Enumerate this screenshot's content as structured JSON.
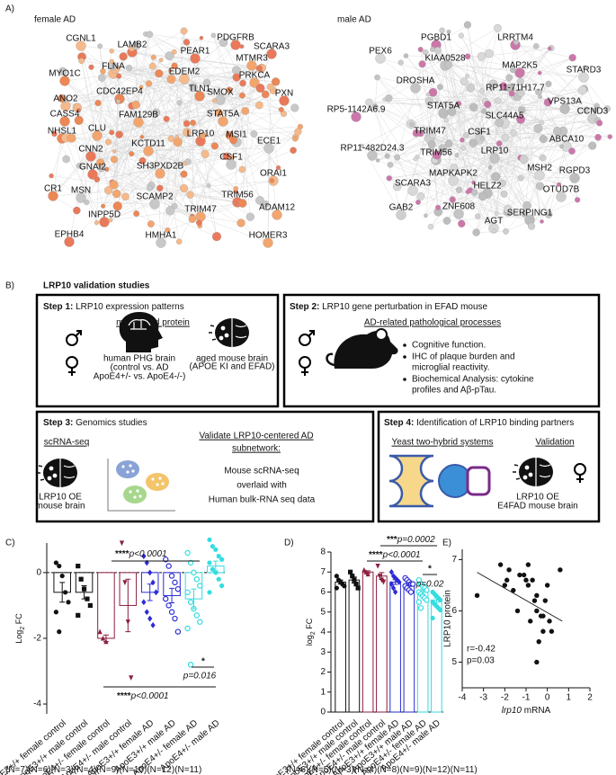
{
  "figure": {
    "panel_a": {
      "label": "A)",
      "networks": [
        {
          "title": "female AD",
          "nodes": [
            {
              "label": "CGNL1",
              "color": "#111111"
            },
            {
              "label": "LAMB2",
              "color": "#111111"
            },
            {
              "label": "PEAR1",
              "color": "#111111"
            },
            {
              "label": "PDGFRB",
              "color": "#111111"
            },
            {
              "label": "SCARA3",
              "color": "#3a4ab5"
            },
            {
              "label": "MTMR3",
              "color": "#3a4ab5"
            },
            {
              "label": "MYO1C",
              "color": "#111111"
            },
            {
              "label": "FLNA",
              "color": "#111111"
            },
            {
              "label": "EDEM2",
              "color": "#3a4ab5"
            },
            {
              "label": "PRKCA",
              "color": "#3a4ab5"
            },
            {
              "label": "ANO2",
              "color": "#3a4ab5"
            },
            {
              "label": "CDC42EP4",
              "color": "#111111"
            },
            {
              "label": "TLN1",
              "color": "#3a4ab5"
            },
            {
              "label": "SMOX",
              "color": "#111111"
            },
            {
              "label": "PXN",
              "color": "#111111"
            },
            {
              "label": "CASS4",
              "color": "#3a4ab5"
            },
            {
              "label": "FAM129B",
              "color": "#111111"
            },
            {
              "label": "STAT5A",
              "color": "#111111"
            },
            {
              "label": "NHSL1",
              "color": "#3a4ab5"
            },
            {
              "label": "CLU",
              "color": "#3a4ab5"
            },
            {
              "label": "LRP10",
              "color": "#111111"
            },
            {
              "label": "MSI1",
              "color": "#111111"
            },
            {
              "label": "ECE1",
              "color": "#111111"
            },
            {
              "label": "CNN2",
              "color": "#3a4ab5"
            },
            {
              "label": "KCTD11",
              "color": "#111111"
            },
            {
              "label": "CSF1",
              "color": "#3a4ab5"
            },
            {
              "label": "GNAI2",
              "color": "#111111"
            },
            {
              "label": "SH3PXD2B",
              "color": "#111111"
            },
            {
              "label": "ORAI1",
              "color": "#111111"
            },
            {
              "label": "CR1",
              "color": "#3a4ab5"
            },
            {
              "label": "MSN",
              "color": "#111111"
            },
            {
              "label": "SCAMP2",
              "color": "#111111"
            },
            {
              "label": "TRIM56",
              "color": "#3a4ab5"
            },
            {
              "label": "ADAM12",
              "color": "#3a4ab5"
            },
            {
              "label": "TRIM47",
              "color": "#3a4ab5"
            },
            {
              "label": "INPP5D",
              "color": "#3a4ab5"
            },
            {
              "label": "EPHB4",
              "color": "#111111"
            },
            {
              "label": "HMHA1",
              "color": "#111111"
            },
            {
              "label": "HOMER3",
              "color": "#111111"
            }
          ]
        },
        {
          "title": "male AD",
          "nodes": [
            {
              "label": "PGBD1",
              "color": "#3a4ab5"
            },
            {
              "label": "LRRTM4",
              "color": "#111111"
            },
            {
              "label": "PEX6",
              "color": "#3a4ab5"
            },
            {
              "label": "KIAA0528",
              "color": "#111111"
            },
            {
              "label": "MAP2K5",
              "color": "#3a4ab5"
            },
            {
              "label": "STARD3",
              "color": "#111111"
            },
            {
              "label": "DROSHA",
              "color": "#111111"
            },
            {
              "label": "RP11-71H17.7",
              "color": "#111111"
            },
            {
              "label": "VPS13A",
              "color": "#111111"
            },
            {
              "label": "CCND3",
              "color": "#111111"
            },
            {
              "label": "RP5-1142A6.9",
              "color": "#111111"
            },
            {
              "label": "STAT5A",
              "color": "#111111"
            },
            {
              "label": "SLC44A5",
              "color": "#111111"
            },
            {
              "label": "TRIM47",
              "color": "#3a4ab5"
            },
            {
              "label": "CSF1",
              "color": "#3a4ab5"
            },
            {
              "label": "ABCA10",
              "color": "#111111"
            },
            {
              "label": "RP11-482D24.3",
              "color": "#111111"
            },
            {
              "label": "LRP10",
              "color": "#111111"
            },
            {
              "label": "TRIM56",
              "color": "#3a4ab5"
            },
            {
              "label": "MAPKAPK2",
              "color": "#111111"
            },
            {
              "label": "MSH2",
              "color": "#3a4ab5"
            },
            {
              "label": "RGPD3",
              "color": "#111111"
            },
            {
              "label": "SCARA3",
              "color": "#3a4ab5"
            },
            {
              "label": "HELZ2",
              "color": "#111111"
            },
            {
              "label": "OTUD7B",
              "color": "#3a4ab5"
            },
            {
              "label": "GAB2",
              "color": "#3a4ab5"
            },
            {
              "label": "ZNF608",
              "color": "#3a4ab5"
            },
            {
              "label": "SERPING1",
              "color": "#3a4ab5"
            },
            {
              "label": "AGT",
              "color": "#3a4ab5"
            }
          ]
        }
      ]
    },
    "panel_b": {
      "label": "B)",
      "title": "LRP10 validation studies",
      "steps": [
        {
          "step": "Step 1:",
          "title": " LRP10 expression patterns",
          "subtitle": "mRNA and protein",
          "captions": [
            [
              "human PHG brain",
              "(control vs. AD",
              "ApoE4+/- vs. ApoE4-/-)"
            ],
            [
              "aged mouse brain",
              "(APOE KI and EFAD)"
            ]
          ]
        },
        {
          "step": "Step 2:",
          "title": " LRP10 gene perturbation in EFAD mouse",
          "subtitle": "AD-related pathological processes",
          "bullets": [
            [
              "Cognitive function."
            ],
            [
              "IHC of plaque burden and",
              "microglial reactivity."
            ],
            [
              "Biochemical Analysis: cytokine",
              "profiles and Aβ-pTau."
            ]
          ]
        },
        {
          "step": "Step 3:",
          "title": " Genomics studies",
          "subtitle": "scRNA-seq",
          "subtitle2": [
            "Validate LRP10-centered AD",
            "subnetwork:"
          ],
          "body": [
            "Mouse scRNA-seq",
            "overlaid with",
            "Human bulk-RNA seq data"
          ],
          "captions": [
            [
              "LRP10 OE",
              "mouse brain"
            ]
          ]
        },
        {
          "step": "Step 4:",
          "title": " Identification of LRP10 binding partners",
          "subtitle": "Yeast two-hybrid systems",
          "subtitle2": [
            "Validation"
          ],
          "captions": [
            [
              "LRP10 OE",
              "E4FAD mouse brain"
            ]
          ]
        }
      ]
    },
    "panel_labels": [
      "C)",
      "D)",
      "E)"
    ]
  },
  "chart_data": [
    {
      "type": "bar",
      "categories": [
        "ApoE3+/+ female control",
        "ApoE3+/+ male control",
        "ApoE4+/- female control",
        "ApoE4+/- male control",
        "ApoE3+/+ female AD",
        "ApoE3+/+ male AD",
        "ApoE4+/- female AD",
        "ApoE4+/- male AD"
      ],
      "values": [
        -0.6,
        -0.6,
        -2.0,
        -1.0,
        -0.6,
        -0.7,
        -0.8,
        0.2
      ],
      "errors": [
        0.3,
        0.2,
        0.1,
        0.8,
        0.25,
        0.22,
        0.3,
        0.15
      ],
      "points": [
        [
          0.3,
          0.2,
          -0.1,
          -0.6,
          -0.9,
          -1.2,
          -1.8
        ],
        [
          0.2,
          -0.2,
          -0.5,
          -0.8,
          -1.0,
          -1.3
        ],
        [
          -1.8,
          -2.0,
          -2.1
        ],
        [
          0.9,
          -0.3,
          -1.5,
          -3.2
        ],
        [
          0.5,
          0.3,
          0.0,
          -0.3,
          -0.6,
          -0.9,
          -1.2,
          -1.4,
          -1.6
        ],
        [
          0.4,
          0.2,
          -0.1,
          -0.3,
          -0.5,
          -0.8,
          -1.0,
          -1.2,
          -1.4,
          -1.8
        ],
        [
          0.6,
          0.3,
          0.0,
          -0.2,
          -0.4,
          -0.6,
          -0.9,
          -1.1,
          -1.3,
          -1.5,
          -1.7,
          -2.8
        ],
        [
          1.0,
          0.8,
          0.7,
          0.5,
          0.4,
          0.3,
          0.1,
          0.0,
          -0.2,
          -0.4,
          -0.6
        ]
      ],
      "colors": [
        "#111111",
        "#111111",
        "#8b1e3f",
        "#8b1e3f",
        "#2b2bd6",
        "#2b2bd6",
        "#33dde0",
        "#33dde0"
      ],
      "markers": [
        "circle",
        "square",
        "triangle",
        "triangle-down",
        "diamond",
        "circle-open",
        "circle-open",
        "circle"
      ],
      "n_labels": [
        "(N=7)",
        "(N=6)",
        "(N=3)",
        "(N=4)",
        "(N=9)",
        "(N=10)",
        "(N=12)",
        "(N=11)"
      ],
      "ylabel": [
        "Log",
        "2",
        " FC"
      ],
      "ylim": [
        -4.3,
        0.9
      ],
      "yticks": [
        0,
        -2,
        -4
      ],
      "zero_line": "dashed",
      "annotations": [
        {
          "stars": "****",
          "p": "p<0.0001"
        },
        {
          "stars": "*",
          "p": "p=0.016"
        },
        {
          "stars": "****",
          "p": "p<0.0001"
        }
      ]
    },
    {
      "type": "bar",
      "categories": [
        "ApoE3+/+ female control",
        "ApoE3+/+ male control",
        "ApoE4+/- female control",
        "ApoE4+/- male control",
        "ApoE3+/+ female AD",
        "ApoE3+/+ male AD",
        "ApoE4+/- female AD",
        "ApoE4+/- male AD"
      ],
      "values": [
        6.5,
        6.6,
        7.0,
        6.8,
        6.5,
        6.4,
        6.0,
        5.6
      ],
      "errors": [
        0.1,
        0.15,
        0.06,
        0.17,
        0.12,
        0.08,
        0.12,
        0.11
      ],
      "points": [
        [
          6.8,
          6.6,
          6.5,
          6.4,
          6.3,
          6.2
        ],
        [
          7.0,
          6.8,
          6.6,
          6.4,
          6.2
        ],
        [
          7.1,
          7.0,
          6.9
        ],
        [
          7.3,
          6.8,
          6.6,
          6.5
        ],
        [
          7.0,
          6.8,
          6.7,
          6.6,
          6.5,
          6.4,
          6.2,
          6.0
        ],
        [
          6.7,
          6.6,
          6.5,
          6.4,
          6.4,
          6.3,
          6.2,
          6.1,
          6.0
        ],
        [
          6.6,
          6.4,
          6.3,
          6.2,
          6.1,
          6.0,
          5.9,
          5.8,
          5.7,
          5.6,
          5.5,
          5.2
        ],
        [
          6.0,
          5.9,
          5.8,
          5.7,
          5.6,
          5.5,
          5.4,
          5.3,
          5.2,
          5.1,
          4.7
        ]
      ],
      "colors": [
        "#111111",
        "#111111",
        "#8b1e3f",
        "#8b1e3f",
        "#2b2bd6",
        "#2b2bd6",
        "#33dde0",
        "#33dde0"
      ],
      "markers": [
        "circle",
        "square",
        "triangle",
        "triangle-down",
        "diamond",
        "circle-open",
        "circle-open",
        "circle"
      ],
      "n_labels": [
        "(N=6)",
        "(N=5)",
        "(N=3)",
        "(N=4)",
        "(N=8)",
        "(N=9)",
        "(N=12)",
        "(N=11)"
      ],
      "ylabel": [
        "log",
        "2",
        " FC"
      ],
      "ylim": [
        0,
        8
      ],
      "yticks": [
        0,
        1,
        2,
        3,
        4,
        5,
        6,
        7,
        8
      ],
      "annotations": [
        {
          "stars": "***",
          "p": "p=0.0002"
        },
        {
          "stars": "****",
          "p": "p<0.0001"
        },
        {
          "stars": "*",
          "p": "p=0.02"
        }
      ]
    },
    {
      "type": "scatter",
      "x": [
        -3.3,
        -2.2,
        -2.0,
        -1.9,
        -1.8,
        -1.6,
        -1.4,
        -1.3,
        -1.1,
        -1.0,
        -0.9,
        -0.8,
        -0.7,
        -0.6,
        -0.5,
        -0.5,
        -0.4,
        -0.3,
        -0.2,
        -0.1,
        0.0,
        0.1,
        0.2,
        0.6,
        -0.5,
        -0.9,
        -0.2
      ],
      "y": [
        6.3,
        6.9,
        6.5,
        6.6,
        6.8,
        6.4,
        6.0,
        6.7,
        6.7,
        6.6,
        6.5,
        5.8,
        6.6,
        6.2,
        6.0,
        6.3,
        5.4,
        5.9,
        5.6,
        6.2,
        6.5,
        5.8,
        5.6,
        6.8,
        5.0,
        6.9,
        5.9
      ],
      "fit": {
        "x": [
          -3.3,
          0.7
        ],
        "y": [
          6.75,
          5.8
        ]
      },
      "color": "#111111",
      "xlabel": [
        "lrp10",
        " mRNA"
      ],
      "ylabel": "LRP10 protein",
      "xlim": [
        -4,
        2
      ],
      "xticks": [
        -4,
        -3,
        -2,
        -1,
        0,
        1,
        2
      ],
      "ylim": [
        4.5,
        7.2
      ],
      "yticks": [
        5,
        6,
        7
      ],
      "annotations": [
        "r=-0.42",
        "p=0.03"
      ]
    }
  ]
}
